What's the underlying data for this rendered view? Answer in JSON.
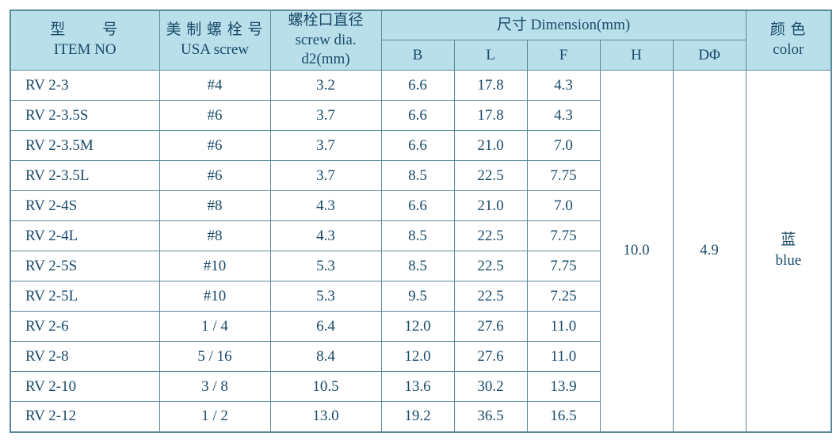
{
  "colors": {
    "header_bg": "#b9e0ea",
    "border": "#5a8a9a",
    "text": "#1a4a6a",
    "body_bg": "#ffffff"
  },
  "header": {
    "item_no_cn": "型　　号",
    "item_no_en": "ITEM NO",
    "usa_screw_cn": "美 制 螺 栓 号",
    "usa_screw_en": "USA screw",
    "dia_cn": "螺栓口直径",
    "dia_en1": "screw dia.",
    "dia_en2": "d2(mm)",
    "dimension": "尺寸 Dimension(mm)",
    "B": "B",
    "L": "L",
    "F": "F",
    "H": "H",
    "DPhi": "DΦ",
    "color_cn": "颜  色",
    "color_en": "color"
  },
  "merged": {
    "H": "10.0",
    "DPhi": "4.9",
    "color_cn": "蓝",
    "color_en": "blue"
  },
  "rows": [
    {
      "item": "RV 2-3",
      "screw": "#4",
      "dia": "3.2",
      "B": "6.6",
      "L": "17.8",
      "F": "4.3"
    },
    {
      "item": "RV 2-3.5S",
      "screw": "#6",
      "dia": "3.7",
      "B": "6.6",
      "L": "17.8",
      "F": "4.3"
    },
    {
      "item": "RV 2-3.5M",
      "screw": "#6",
      "dia": "3.7",
      "B": "6.6",
      "L": "21.0",
      "F": "7.0"
    },
    {
      "item": "RV 2-3.5L",
      "screw": "#6",
      "dia": "3.7",
      "B": "8.5",
      "L": "22.5",
      "F": "7.75"
    },
    {
      "item": "RV 2-4S",
      "screw": "#8",
      "dia": "4.3",
      "B": "6.6",
      "L": "21.0",
      "F": "7.0"
    },
    {
      "item": "RV 2-4L",
      "screw": "#8",
      "dia": "4.3",
      "B": "8.5",
      "L": "22.5",
      "F": "7.75"
    },
    {
      "item": "RV 2-5S",
      "screw": "#10",
      "dia": "5.3",
      "B": "8.5",
      "L": "22.5",
      "F": "7.75"
    },
    {
      "item": "RV 2-5L",
      "screw": "#10",
      "dia": "5.3",
      "B": "9.5",
      "L": "22.5",
      "F": "7.25"
    },
    {
      "item": "RV 2-6",
      "screw": "1 / 4",
      "dia": "6.4",
      "B": "12.0",
      "L": "27.6",
      "F": "11.0"
    },
    {
      "item": "RV 2-8",
      "screw": "5 / 16",
      "dia": "8.4",
      "B": "12.0",
      "L": "27.6",
      "F": "11.0"
    },
    {
      "item": "RV 2-10",
      "screw": "3 / 8",
      "dia": "10.5",
      "B": "13.6",
      "L": "30.2",
      "F": "13.9"
    },
    {
      "item": "RV 2-12",
      "screw": "1 / 2",
      "dia": "13.0",
      "B": "19.2",
      "L": "36.5",
      "F": "16.5"
    }
  ]
}
